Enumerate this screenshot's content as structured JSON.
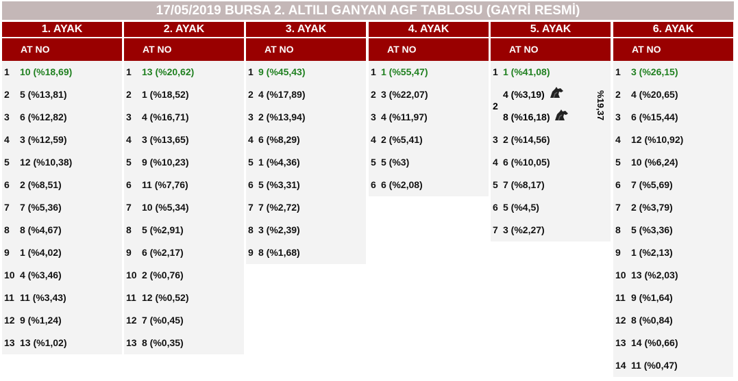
{
  "title": "17/05/2019 BURSA 2. ALTILI GANYAN AGF TABLOSU (GAYRİ RESMİ)",
  "subheader": "AT NO",
  "colors": {
    "header_bg": "#990000",
    "title_bg": "#c4b7b7",
    "favorite_text": "#208020",
    "row_bg": "#f3f3f3"
  },
  "legs": [
    {
      "label": "1. AYAK",
      "rows": [
        {
          "n": "1",
          "v": "10 (%18,69)",
          "fav": true
        },
        {
          "n": "2",
          "v": "5 (%13,81)"
        },
        {
          "n": "3",
          "v": "6 (%12,82)"
        },
        {
          "n": "4",
          "v": "3 (%12,59)"
        },
        {
          "n": "5",
          "v": "12 (%10,38)"
        },
        {
          "n": "6",
          "v": "2 (%8,51)"
        },
        {
          "n": "7",
          "v": "7 (%5,36)"
        },
        {
          "n": "8",
          "v": "8 (%4,67)"
        },
        {
          "n": "9",
          "v": "1 (%4,02)"
        },
        {
          "n": "10",
          "v": "4 (%3,46)"
        },
        {
          "n": "11",
          "v": "11 (%3,43)"
        },
        {
          "n": "12",
          "v": "9 (%1,24)"
        },
        {
          "n": "13",
          "v": "13 (%1,02)"
        }
      ]
    },
    {
      "label": "2. AYAK",
      "rows": [
        {
          "n": "1",
          "v": "13 (%20,62)",
          "fav": true
        },
        {
          "n": "2",
          "v": "1 (%18,52)"
        },
        {
          "n": "3",
          "v": "4 (%16,71)"
        },
        {
          "n": "4",
          "v": "3 (%13,65)"
        },
        {
          "n": "5",
          "v": "9 (%10,23)"
        },
        {
          "n": "6",
          "v": "11 (%7,76)"
        },
        {
          "n": "7",
          "v": "10 (%5,34)"
        },
        {
          "n": "8",
          "v": "5 (%2,91)"
        },
        {
          "n": "9",
          "v": "6 (%2,17)"
        },
        {
          "n": "10",
          "v": "2 (%0,76)"
        },
        {
          "n": "11",
          "v": "12 (%0,52)"
        },
        {
          "n": "12",
          "v": "7 (%0,45)"
        },
        {
          "n": "13",
          "v": "8 (%0,35)"
        }
      ]
    },
    {
      "label": "3. AYAK",
      "narrow": true,
      "rows": [
        {
          "n": "1",
          "v": "9 (%45,43)",
          "fav": true
        },
        {
          "n": "2",
          "v": "4 (%17,89)"
        },
        {
          "n": "3",
          "v": "2 (%13,94)"
        },
        {
          "n": "4",
          "v": "6 (%8,29)"
        },
        {
          "n": "5",
          "v": "1 (%4,36)"
        },
        {
          "n": "6",
          "v": "5 (%3,31)"
        },
        {
          "n": "7",
          "v": "7 (%2,72)"
        },
        {
          "n": "8",
          "v": "3 (%2,39)"
        },
        {
          "n": "9",
          "v": "8 (%1,68)"
        }
      ]
    },
    {
      "label": "4. AYAK",
      "narrow": true,
      "rows": [
        {
          "n": "1",
          "v": "1 (%55,47)",
          "fav": true
        },
        {
          "n": "2",
          "v": "3 (%22,07)"
        },
        {
          "n": "3",
          "v": "4 (%11,97)"
        },
        {
          "n": "4",
          "v": "2 (%5,41)"
        },
        {
          "n": "5",
          "v": "5 (%3)"
        },
        {
          "n": "6",
          "v": "6 (%2,08)"
        }
      ]
    },
    {
      "label": "5. AYAK",
      "narrow": true,
      "rows": [
        {
          "n": "1",
          "v": "1 (%41,08)",
          "fav": true
        },
        {
          "n": "2",
          "group": true,
          "lines": [
            "4 (%3,19)",
            "8 (%16,18)"
          ],
          "total": "%19,37"
        },
        {
          "n": "3",
          "v": "2 (%14,56)"
        },
        {
          "n": "4",
          "v": "6 (%10,05)"
        },
        {
          "n": "5",
          "v": "7 (%8,17)"
        },
        {
          "n": "6",
          "v": "5 (%4,5)"
        },
        {
          "n": "7",
          "v": "3 (%2,27)"
        }
      ]
    },
    {
      "label": "6. AYAK",
      "rows": [
        {
          "n": "1",
          "v": "3 (%26,15)",
          "fav": true
        },
        {
          "n": "2",
          "v": "4 (%20,65)"
        },
        {
          "n": "3",
          "v": "6 (%15,44)"
        },
        {
          "n": "4",
          "v": "12 (%10,92)"
        },
        {
          "n": "5",
          "v": "10 (%6,24)"
        },
        {
          "n": "6",
          "v": "7 (%5,69)"
        },
        {
          "n": "7",
          "v": "2 (%3,79)"
        },
        {
          "n": "8",
          "v": "5 (%3,36)"
        },
        {
          "n": "9",
          "v": "1 (%2,13)"
        },
        {
          "n": "10",
          "v": "13 (%2,03)"
        },
        {
          "n": "11",
          "v": "9 (%1,64)"
        },
        {
          "n": "12",
          "v": "8 (%0,84)"
        },
        {
          "n": "13",
          "v": "14 (%0,66)"
        },
        {
          "n": "14",
          "v": "11 (%0,47)"
        }
      ]
    }
  ]
}
